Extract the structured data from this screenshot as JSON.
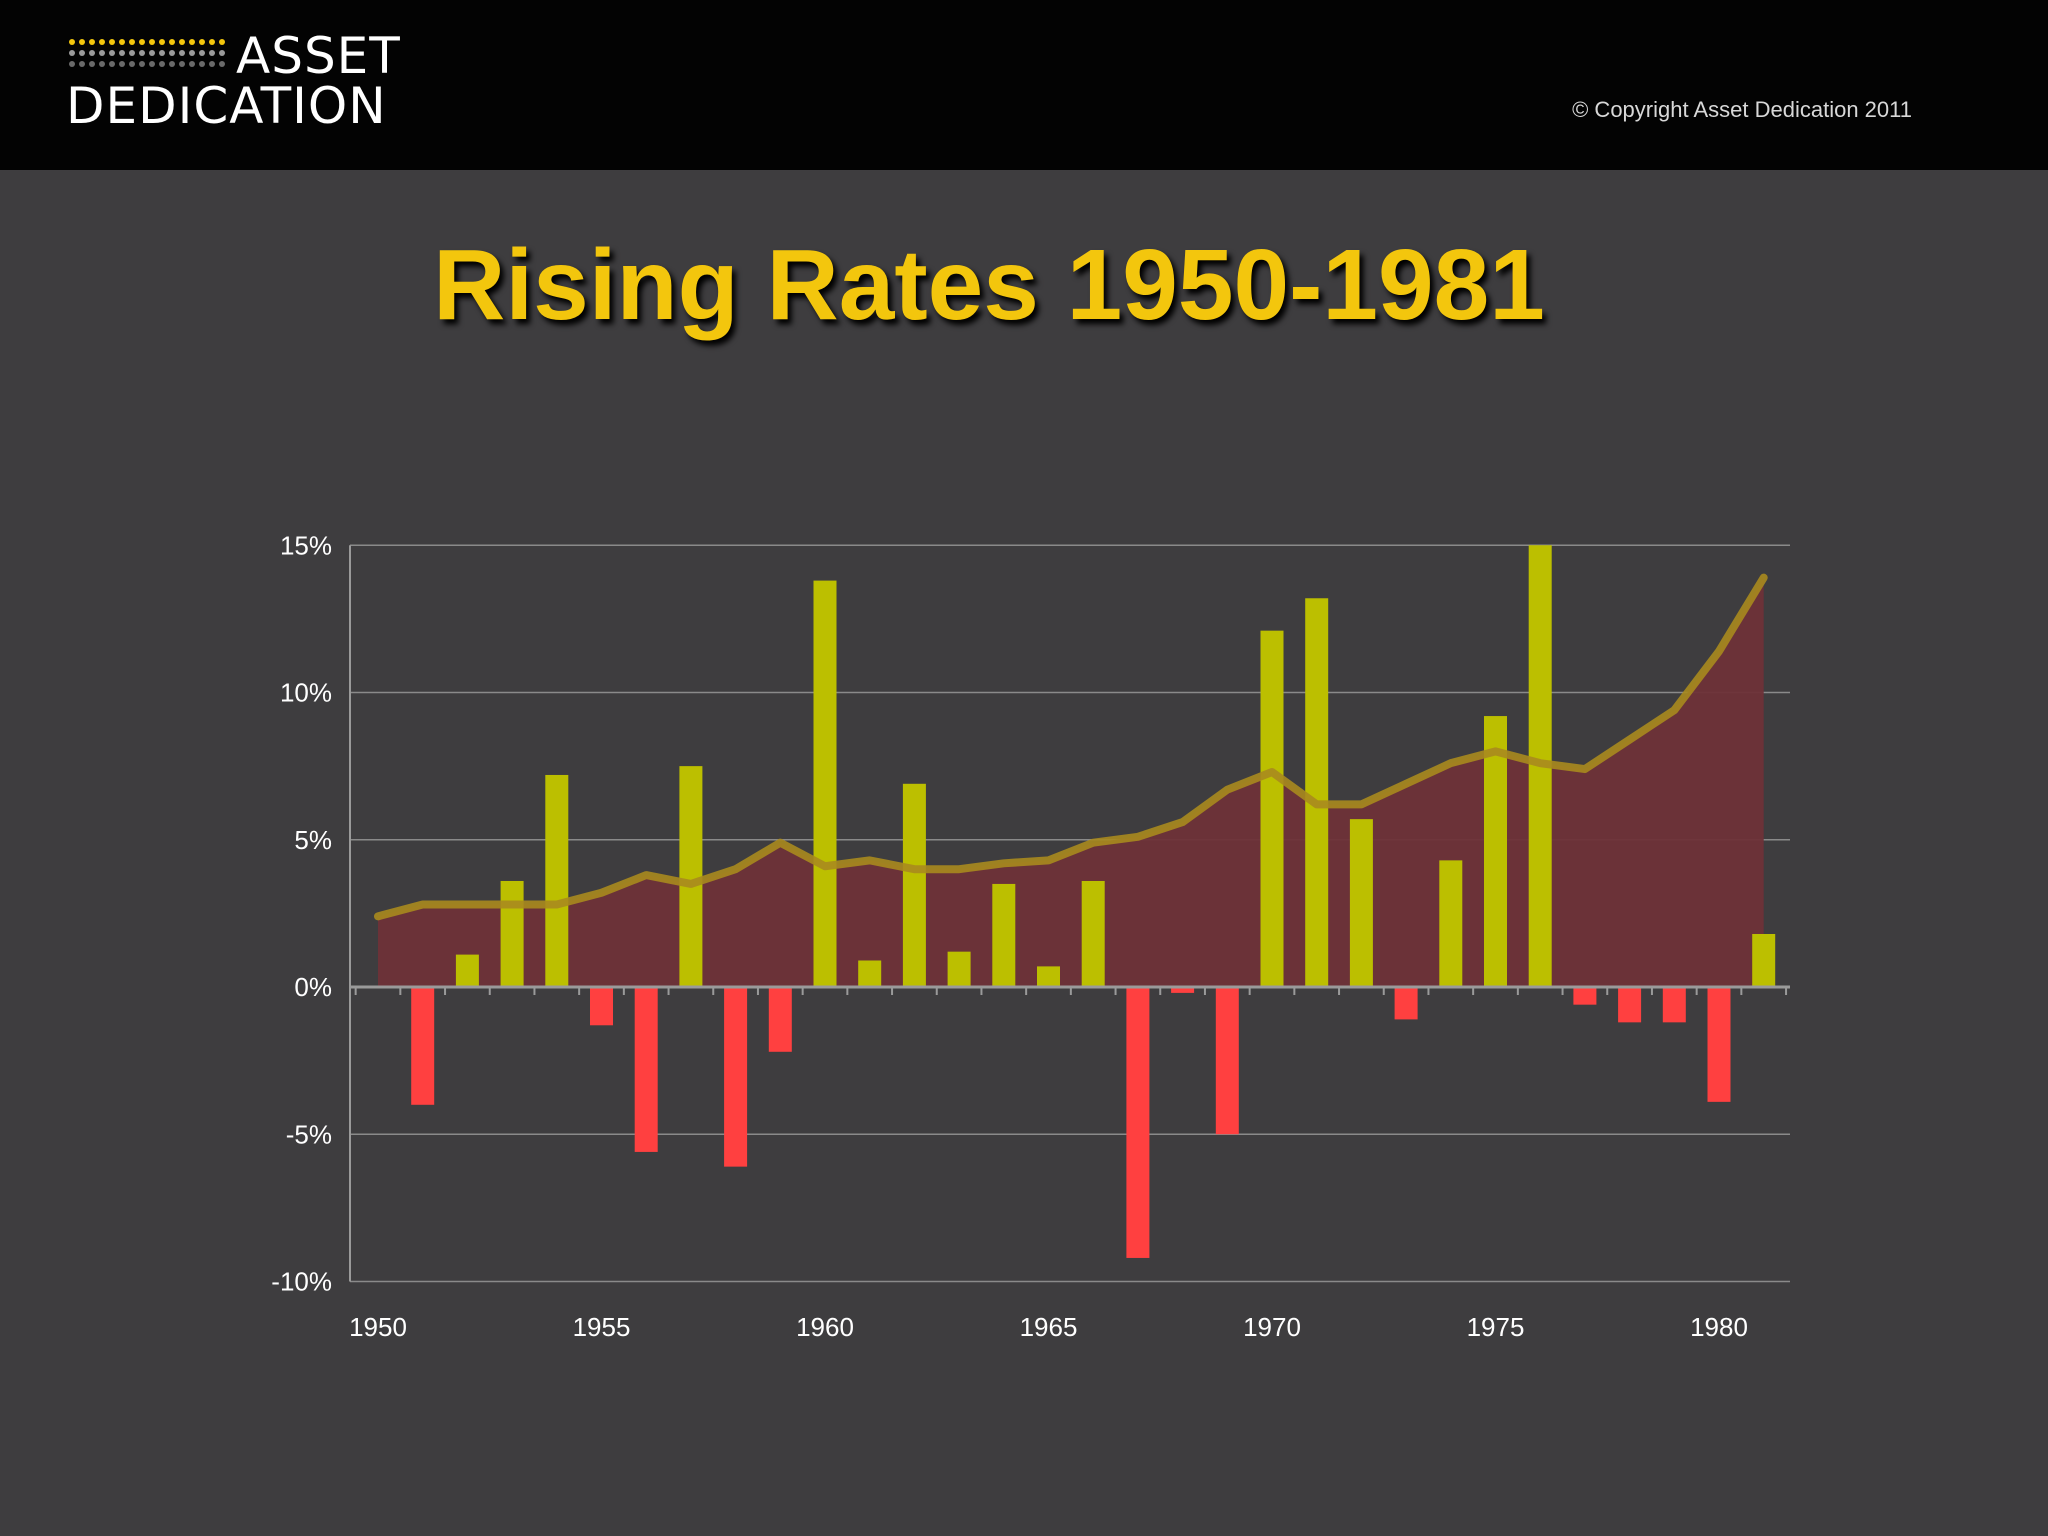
{
  "header": {
    "logo_line1": "ASSET",
    "logo_line2": "DEDICATION",
    "copyright": "© Copyright Asset Dedication 2011"
  },
  "colors": {
    "background": "#3e3d3f",
    "header": "#030303",
    "title": "#f3c60d",
    "positive_bar": "#bcbf00",
    "negative_bar": "#ff4040",
    "area": "#6e3238",
    "line": "#a88a1e"
  },
  "chart_data": {
    "type": "bar",
    "title": "Rising Rates 1950-1981",
    "xlabel": "",
    "ylabel": "",
    "ylim": [
      -10,
      15
    ],
    "y_ticks": [
      15,
      10,
      5,
      0,
      -5,
      -10
    ],
    "y_tick_labels": [
      "15%",
      "10%",
      "5%",
      "0%",
      "-5%",
      "-10%"
    ],
    "x_tick_labels": [
      "1950",
      "1955",
      "1960",
      "1965",
      "1970",
      "1975",
      "1980"
    ],
    "x_ticks": [
      1950,
      1955,
      1960,
      1965,
      1970,
      1975,
      1980
    ],
    "grid": true,
    "legend": "none",
    "years": [
      1950,
      1951,
      1952,
      1953,
      1954,
      1955,
      1956,
      1957,
      1958,
      1959,
      1960,
      1961,
      1962,
      1963,
      1964,
      1965,
      1966,
      1967,
      1968,
      1969,
      1970,
      1971,
      1972,
      1973,
      1974,
      1975,
      1976,
      1977,
      1978,
      1979,
      1980,
      1981
    ],
    "series": [
      {
        "kind": "bar",
        "values": [
          0.0,
          -4.0,
          1.1,
          3.6,
          7.2,
          -1.3,
          -5.6,
          7.5,
          -6.1,
          -2.2,
          13.8,
          0.9,
          6.9,
          1.2,
          3.5,
          0.7,
          3.6,
          -9.2,
          -0.2,
          -5.0,
          12.1,
          13.2,
          5.7,
          -1.1,
          4.3,
          9.2,
          15.0,
          -0.6,
          -1.2,
          -1.2,
          -3.9,
          1.8
        ]
      },
      {
        "kind": "area-line",
        "values": [
          2.4,
          2.8,
          2.8,
          2.8,
          2.8,
          3.2,
          3.8,
          3.5,
          4.0,
          4.9,
          4.1,
          4.3,
          4.0,
          4.0,
          4.2,
          4.3,
          4.9,
          5.1,
          5.6,
          6.7,
          7.3,
          6.2,
          6.2,
          6.9,
          7.6,
          8.0,
          7.6,
          7.4,
          8.4,
          9.4,
          11.4,
          13.9
        ]
      }
    ]
  }
}
